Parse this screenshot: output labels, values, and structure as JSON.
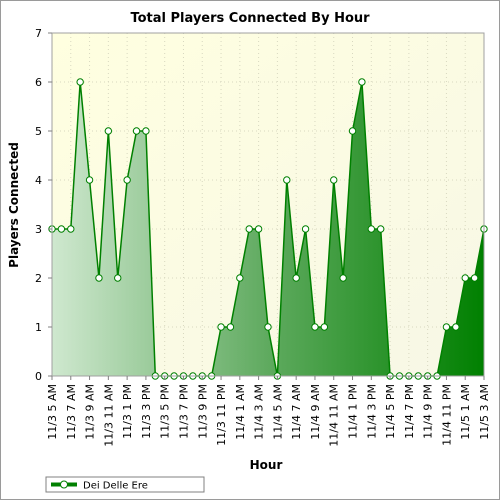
{
  "chart_data": {
    "type": "area",
    "title": "Total Players Connected By Hour",
    "xlabel": "Hour",
    "ylabel": "Players Connected",
    "ylim": [
      0,
      7
    ],
    "yticks": [
      0,
      1,
      2,
      3,
      4,
      5,
      6,
      7
    ],
    "grid": true,
    "legend_placement": "bottom-left",
    "x_tick_labels": [
      "11/3 5 AM",
      "11/3 7 AM",
      "11/3 9 AM",
      "11/3 11 AM",
      "11/3 1 PM",
      "11/3 3 PM",
      "11/3 5 PM",
      "11/3 7 PM",
      "11/3 9 PM",
      "11/3 11 PM",
      "11/4 1 AM",
      "11/4 3 AM",
      "11/4 5 AM",
      "11/4 7 AM",
      "11/4 9 AM",
      "11/4 11 AM",
      "11/4 1 PM",
      "11/4 3 PM",
      "11/4 5 PM",
      "11/4 7 PM",
      "11/4 9 PM",
      "11/4 11 PM",
      "11/5 1 AM",
      "11/5 3 AM"
    ],
    "series": [
      {
        "name": "Dei Delle Ere",
        "color": "#008000",
        "values": [
          3,
          3,
          3,
          6,
          4,
          2,
          5,
          2,
          4,
          5,
          5,
          0,
          0,
          0,
          0,
          0,
          0,
          0,
          1,
          1,
          2,
          3,
          3,
          1,
          0,
          4,
          2,
          3,
          1,
          1,
          4,
          2,
          5,
          6,
          3,
          3,
          0,
          0,
          0,
          0,
          0,
          0,
          1,
          1,
          2,
          2,
          3
        ]
      }
    ]
  }
}
